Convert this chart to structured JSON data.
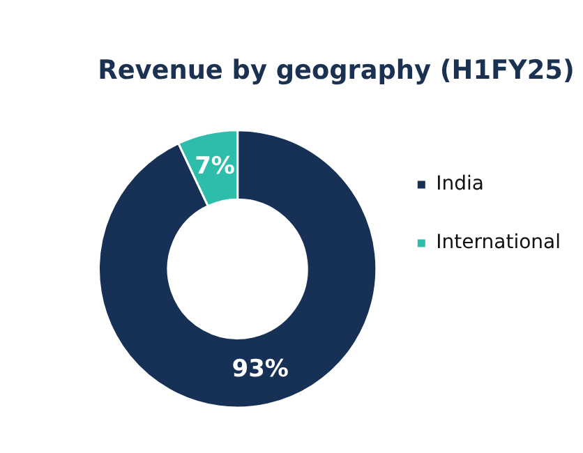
{
  "chart_data": {
    "type": "donut",
    "title": "Revenue by geography (H1FY25)",
    "categories": [
      "India",
      "International"
    ],
    "values": [
      93,
      7
    ],
    "colors": [
      "#163056",
      "#2ebdaa"
    ],
    "value_labels": [
      "93%",
      "7%"
    ],
    "legend": "right"
  }
}
